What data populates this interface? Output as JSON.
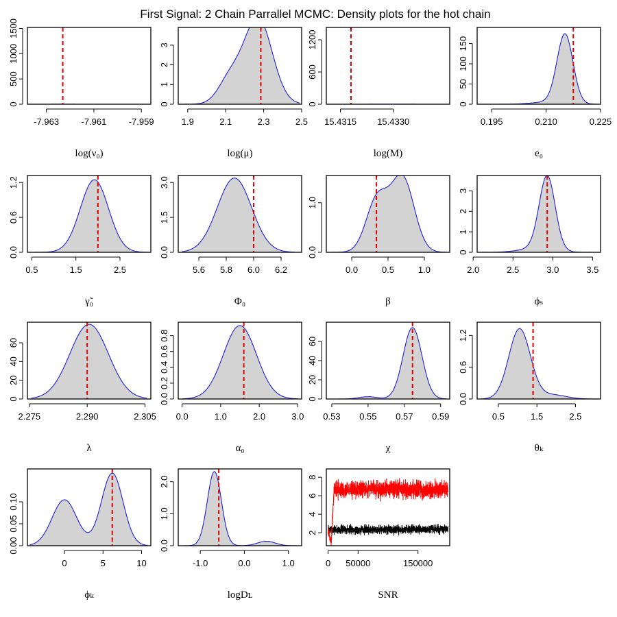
{
  "title": "First Signal: 2 Chain Parrallel MCMC: Density plots for the hot chain",
  "colors": {
    "fill": "#d3d3d3",
    "density_line": "#1f1fd0",
    "true_value_line": "#e00000",
    "trace_hot": "#ff0000",
    "trace_cold": "#000000"
  },
  "chart_data": [
    {
      "id": "lognu0",
      "type": "area",
      "xlabel": "log(ν₀)",
      "xlim": [
        -7.9638,
        -7.9586
      ],
      "ylim": [
        0,
        1520
      ],
      "xticks": [
        -7.963,
        -7.961,
        -7.959
      ],
      "xtick_labels": [
        "-7.963",
        "-7.961",
        "-7.959"
      ],
      "yticks": [
        0,
        500,
        1000,
        1500
      ],
      "ytick_labels": [
        "0",
        "500",
        "1000",
        "1500"
      ],
      "true_value": -7.96231,
      "components": [
        {
          "mu": -7.9623,
          "sd": 0.00026,
          "w": 0.00095
        },
        {
          "mu": -7.9604,
          "sd": 0.0005,
          "w": 4e-05
        }
      ],
      "curve_range": [
        -7.9636,
        -7.9588
      ]
    },
    {
      "id": "logmu",
      "type": "area",
      "xlabel": "log(μ)",
      "xlim": [
        1.85,
        2.5
      ],
      "ylim": [
        0,
        3.9
      ],
      "xticks": [
        1.9,
        2.1,
        2.3,
        2.5
      ],
      "xtick_labels": [
        "1.9",
        "2.1",
        "2.3",
        "2.5"
      ],
      "yticks": [
        0,
        1,
        2,
        3
      ],
      "ytick_labels": [
        "0",
        "1",
        "2",
        "3"
      ],
      "true_value": 2.285,
      "components": [
        {
          "mu": 2.27,
          "sd": 0.075,
          "w": 0.82
        },
        {
          "mu": 2.12,
          "sd": 0.06,
          "w": 0.18
        }
      ],
      "curve_range": [
        1.85,
        2.49
      ]
    },
    {
      "id": "logM",
      "type": "area",
      "xlabel": "log(M)",
      "xlim": [
        15.4311,
        15.4346
      ],
      "ylim": [
        0,
        1430
      ],
      "xticks": [
        15.4315,
        15.433
      ],
      "xtick_labels": [
        "15.4315",
        "15.4330"
      ],
      "yticks": [
        0,
        600,
        1200
      ],
      "ytick_labels": [
        "0",
        "600",
        "1200"
      ],
      "true_value": 15.4318,
      "components": [
        {
          "mu": 15.433,
          "sd": 0.00034,
          "w": 0.00098
        },
        {
          "mu": 15.4323,
          "sd": 0.0005,
          "w": 8e-05
        }
      ],
      "curve_range": [
        15.4312,
        15.4344
      ]
    },
    {
      "id": "e0",
      "type": "area",
      "xlabel": "e₀",
      "xlim": [
        0.191,
        0.225
      ],
      "ylim": [
        0,
        190
      ],
      "xticks": [
        0.195,
        0.21,
        0.225
      ],
      "xtick_labels": [
        "0.195",
        "0.210",
        "0.225"
      ],
      "yticks": [
        0,
        50,
        100,
        150
      ],
      "ytick_labels": [
        "0",
        "50",
        "100",
        "150"
      ],
      "true_value": 0.2175,
      "components": [
        {
          "mu": 0.2152,
          "sd": 0.0022,
          "w": 0.95
        },
        {
          "mu": 0.21,
          "sd": 0.004,
          "w": 0.05
        }
      ],
      "curve_range": [
        0.192,
        0.224
      ]
    },
    {
      "id": "gamma0",
      "type": "area",
      "xlabel": "γ̃₀",
      "xlim": [
        0.4,
        3.2
      ],
      "ylim": [
        0,
        1.32
      ],
      "xticks": [
        0.5,
        1.5,
        2.5
      ],
      "xtick_labels": [
        "0.5",
        "1.5",
        "2.5"
      ],
      "yticks": [
        0,
        0.6,
        1.2
      ],
      "ytick_labels": [
        "0.0",
        "0.6",
        "1.2"
      ],
      "true_value": 2.0,
      "components": [
        {
          "mu": 1.92,
          "sd": 0.32,
          "w": 1.0
        }
      ],
      "curve_range": [
        0.45,
        3.15
      ]
    },
    {
      "id": "Phi0",
      "type": "area",
      "xlabel": "Φ₀",
      "xlim": [
        5.45,
        6.35
      ],
      "ylim": [
        0,
        3.3
      ],
      "xticks": [
        5.6,
        5.8,
        6.0,
        6.2
      ],
      "xtick_labels": [
        "5.6",
        "5.8",
        "6.0",
        "6.2"
      ],
      "yticks": [
        0,
        1.5,
        3.0
      ],
      "ytick_labels": [
        "0.0",
        "1.5",
        "3.0"
      ],
      "true_value": 6.0,
      "components": [
        {
          "mu": 5.86,
          "sd": 0.125,
          "w": 1.0
        }
      ],
      "curve_range": [
        5.48,
        6.3
      ]
    },
    {
      "id": "beta",
      "type": "area",
      "xlabel": "β",
      "xlim": [
        -0.35,
        1.35
      ],
      "ylim": [
        0,
        1.55
      ],
      "xticks": [
        0,
        0.5,
        1.0
      ],
      "xtick_labels": [
        "0.0",
        "0.5",
        "1.0"
      ],
      "yticks": [
        0,
        1.0
      ],
      "ytick_labels": [
        "0.0",
        "1.0"
      ],
      "true_value": 0.34,
      "components": [
        {
          "mu": 0.7,
          "sd": 0.16,
          "w": 0.6
        },
        {
          "mu": 0.35,
          "sd": 0.15,
          "w": 0.4
        }
      ],
      "curve_range": [
        -0.3,
        1.3
      ]
    },
    {
      "id": "phiS",
      "type": "area",
      "xlabel": "ϕₛ",
      "xlim": [
        2.05,
        3.6
      ],
      "ylim": [
        0,
        3.75
      ],
      "xticks": [
        2.0,
        2.5,
        3.0,
        3.5
      ],
      "xtick_labels": [
        "2.0",
        "2.5",
        "3.0",
        "3.5"
      ],
      "yticks": [
        0,
        1,
        2,
        3
      ],
      "ytick_labels": [
        "0",
        "1",
        "2",
        "3"
      ],
      "true_value": 2.93,
      "components": [
        {
          "mu": 2.93,
          "sd": 0.1,
          "w": 0.9
        },
        {
          "mu": 2.8,
          "sd": 0.2,
          "w": 0.1
        }
      ],
      "curve_range": [
        2.08,
        3.58
      ]
    },
    {
      "id": "lambda",
      "type": "area",
      "xlabel": "λ",
      "xlim": [
        2.2745,
        2.3065
      ],
      "ylim": [
        0,
        82
      ],
      "xticks": [
        2.275,
        2.29,
        2.305
      ],
      "xtick_labels": [
        "2.275",
        "2.290",
        "2.305"
      ],
      "yticks": [
        0,
        20,
        40,
        60
      ],
      "ytick_labels": [
        "0",
        "20",
        "40",
        "60"
      ],
      "true_value": 2.29,
      "components": [
        {
          "mu": 2.2905,
          "sd": 0.005,
          "w": 1.0
        }
      ],
      "curve_range": [
        2.2755,
        2.3055
      ]
    },
    {
      "id": "alpha0",
      "type": "area",
      "xlabel": "α₀",
      "xlim": [
        -0.1,
        3.1
      ],
      "ylim": [
        0,
        0.97
      ],
      "xticks": [
        0,
        1,
        2,
        3
      ],
      "xtick_labels": [
        "0.0",
        "1.0",
        "2.0",
        "3.0"
      ],
      "yticks": [
        0,
        0.2,
        0.4,
        0.6,
        0.8
      ],
      "ytick_labels": [
        "0.0",
        "0.2",
        "0.4",
        "0.6",
        "0.8"
      ],
      "true_value": 1.6,
      "components": [
        {
          "mu": 1.5,
          "sd": 0.43,
          "w": 1.0
        }
      ],
      "curve_range": [
        0,
        3.0
      ]
    },
    {
      "id": "chi",
      "type": "area",
      "xlabel": "χ",
      "xlim": [
        0.527,
        0.595
      ],
      "ylim": [
        0,
        80
      ],
      "xticks": [
        0.53,
        0.55,
        0.57,
        0.59
      ],
      "xtick_labels": [
        "0.53",
        "0.55",
        "0.57",
        "0.59"
      ],
      "yticks": [
        0,
        20,
        40,
        60
      ],
      "ytick_labels": [
        "0",
        "20",
        "40",
        "60"
      ],
      "true_value": 0.5745,
      "components": [
        {
          "mu": 0.5745,
          "sd": 0.0052,
          "w": 0.97
        },
        {
          "mu": 0.55,
          "sd": 0.005,
          "w": 0.03
        }
      ],
      "curve_range": [
        0.529,
        0.593
      ]
    },
    {
      "id": "thetaK",
      "type": "area",
      "xlabel": "θₖ",
      "xlim": [
        -0.05,
        3.15
      ],
      "ylim": [
        0,
        1.45
      ],
      "xticks": [
        0.5,
        1.5,
        2.5
      ],
      "xtick_labels": [
        "0.5",
        "1.5",
        "2.5"
      ],
      "yticks": [
        0,
        0.6,
        1.2
      ],
      "ytick_labels": [
        "0.0",
        "0.6",
        "1.2"
      ],
      "true_value": 1.4,
      "components": [
        {
          "mu": 1.05,
          "sd": 0.28,
          "w": 0.93
        },
        {
          "mu": 1.9,
          "sd": 0.35,
          "w": 0.07
        }
      ],
      "curve_range": [
        0.05,
        3.1
      ]
    },
    {
      "id": "phiK",
      "type": "area",
      "xlabel": "ϕₖ",
      "xlim": [
        -4.8,
        11.2
      ],
      "ylim": [
        0,
        0.175
      ],
      "xticks": [
        0,
        5,
        10
      ],
      "xtick_labels": [
        "0",
        "5",
        "10"
      ],
      "yticks": [
        0,
        0.05,
        0.1
      ],
      "ytick_labels": [
        "0.00",
        "0.05",
        "0.10"
      ],
      "true_value": 6.2,
      "components": [
        {
          "mu": 0.0,
          "sd": 1.6,
          "w": 0.42
        },
        {
          "mu": 6.2,
          "sd": 1.4,
          "w": 0.58
        }
      ],
      "curve_range": [
        -4.5,
        10.8
      ]
    },
    {
      "id": "logDL",
      "type": "area",
      "xlabel": "logDʟ",
      "xlim": [
        -1.5,
        1.3
      ],
      "ylim": [
        0,
        2.4
      ],
      "xticks": [
        -1.0,
        0.0,
        1.0
      ],
      "xtick_labels": [
        "-1.0",
        "0.0",
        "1.0"
      ],
      "yticks": [
        0,
        1.0,
        2.0
      ],
      "ytick_labels": [
        "0.0",
        "1.0",
        "2.0"
      ],
      "true_value": -0.58,
      "components": [
        {
          "mu": -0.68,
          "sd": 0.16,
          "w": 0.93
        },
        {
          "mu": 0.5,
          "sd": 0.2,
          "w": 0.07
        }
      ],
      "curve_range": [
        -1.45,
        1.25
      ]
    },
    {
      "id": "snr",
      "type": "line",
      "xlabel": "SNR",
      "xlim": [
        -3000,
        203000
      ],
      "ylim": [
        0.6,
        8.9
      ],
      "xticks": [
        0,
        50000,
        150000
      ],
      "xtick_labels": [
        "0",
        "50000",
        "150000"
      ],
      "yticks": [
        2,
        4,
        6,
        8
      ],
      "ytick_labels": [
        "2",
        "4",
        "6",
        "8"
      ],
      "series": [
        {
          "color": "#ff0000",
          "start": 2.3,
          "start_min": 0.9,
          "burn_in_end": 10000,
          "mean": 6.7,
          "spread": 1.7,
          "x_end": 200000
        },
        {
          "color": "#000000",
          "mean": 2.35,
          "spread": 0.9,
          "x_end": 200000
        }
      ]
    }
  ]
}
